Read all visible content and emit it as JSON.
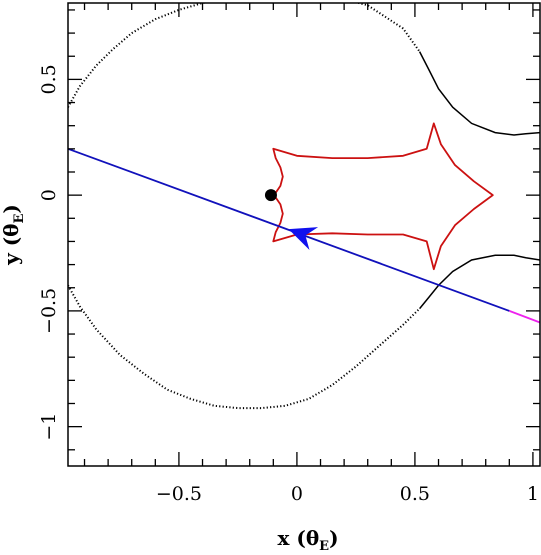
{
  "chart_data": {
    "type": "line",
    "title": "",
    "xlabel": {
      "prefix": "x (",
      "symbol": "θ",
      "subscript": "E",
      "suffix": ")"
    },
    "ylabel": {
      "prefix": "y (",
      "symbol": "θ",
      "subscript": "E",
      "suffix": ")"
    },
    "xlim": [
      -0.97,
      1.03
    ],
    "ylim": [
      -1.17,
      0.83
    ],
    "xticks": [
      -0.5,
      0,
      0.5,
      1
    ],
    "xtick_labels": [
      "−0.5",
      "0",
      "0.5",
      "1"
    ],
    "yticks": [
      -1,
      -0.5,
      0,
      0.5
    ],
    "ytick_labels": [
      "−1",
      "−0.5",
      "0",
      "0.5"
    ],
    "grid": false,
    "series": [
      {
        "kind": "critical-curve-upper",
        "color": "#000000",
        "style": "dotted-then-solid",
        "solid_from_x": 0.55,
        "x": [
          -0.97,
          -0.92,
          -0.85,
          -0.78,
          -0.7,
          -0.6,
          -0.5,
          -0.4,
          -0.3,
          -0.22,
          -0.15,
          0.0,
          0.15,
          0.3,
          0.45,
          0.52,
          0.56,
          0.6,
          0.66,
          0.74,
          0.84,
          0.92,
          0.97,
          1.03
        ],
        "y": [
          0.38,
          0.47,
          0.56,
          0.63,
          0.7,
          0.76,
          0.8,
          0.83,
          0.85,
          0.86,
          0.865,
          0.87,
          0.86,
          0.82,
          0.72,
          0.62,
          0.54,
          0.46,
          0.38,
          0.31,
          0.27,
          0.26,
          0.265,
          0.27
        ]
      },
      {
        "kind": "critical-curve-lower",
        "color": "#000000",
        "style": "dotted-then-solid",
        "solid_from_x": 0.55,
        "x": [
          -0.97,
          -0.92,
          -0.85,
          -0.75,
          -0.65,
          -0.55,
          -0.45,
          -0.35,
          -0.25,
          -0.15,
          -0.05,
          0.05,
          0.15,
          0.25,
          0.35,
          0.45,
          0.52,
          0.56,
          0.6,
          0.66,
          0.74,
          0.84,
          0.92,
          0.97,
          1.03
        ],
        "y": [
          -0.39,
          -0.48,
          -0.58,
          -0.69,
          -0.77,
          -0.84,
          -0.88,
          -0.91,
          -0.92,
          -0.92,
          -0.91,
          -0.88,
          -0.82,
          -0.74,
          -0.65,
          -0.56,
          -0.49,
          -0.44,
          -0.39,
          -0.33,
          -0.28,
          -0.26,
          -0.26,
          -0.27,
          -0.28
        ]
      },
      {
        "kind": "caustic",
        "color": "#cc1111",
        "x": [
          -0.1,
          -0.09,
          -0.07,
          -0.06,
          -0.07,
          -0.09,
          -0.1,
          -0.09,
          -0.07,
          -0.06,
          -0.07,
          -0.09,
          -0.1,
          0.0,
          0.15,
          0.3,
          0.45,
          0.55,
          0.58,
          0.61,
          0.67,
          0.75,
          0.83,
          0.75,
          0.67,
          0.61,
          0.58,
          0.55,
          0.45,
          0.3,
          0.15,
          0.0,
          -0.1
        ],
        "y": [
          0.2,
          0.16,
          0.12,
          0.08,
          0.04,
          0.01,
          0.0,
          -0.01,
          -0.04,
          -0.08,
          -0.12,
          -0.16,
          -0.2,
          -0.17,
          -0.165,
          -0.17,
          -0.17,
          -0.2,
          -0.32,
          -0.22,
          -0.13,
          -0.06,
          0.0,
          0.06,
          0.13,
          0.22,
          0.31,
          0.2,
          0.17,
          0.16,
          0.16,
          0.17,
          0.2
        ]
      },
      {
        "kind": "source-trajectory",
        "color": "#1111bb",
        "x": [
          -0.97,
          0.9
        ],
        "y": [
          0.2,
          -0.5
        ]
      },
      {
        "kind": "source-trajectory-end",
        "color": "#ee22ee",
        "x": [
          0.9,
          1.03
        ],
        "y": [
          -0.5,
          -0.55
        ]
      },
      {
        "kind": "lens-position",
        "color": "#000000",
        "x": [
          -0.11
        ],
        "y": [
          0.0
        ]
      },
      {
        "kind": "direction-arrow",
        "color": "#1111ee",
        "x": [
          0.02,
          -0.03
        ],
        "y": [
          -0.168,
          -0.149
        ]
      }
    ]
  }
}
